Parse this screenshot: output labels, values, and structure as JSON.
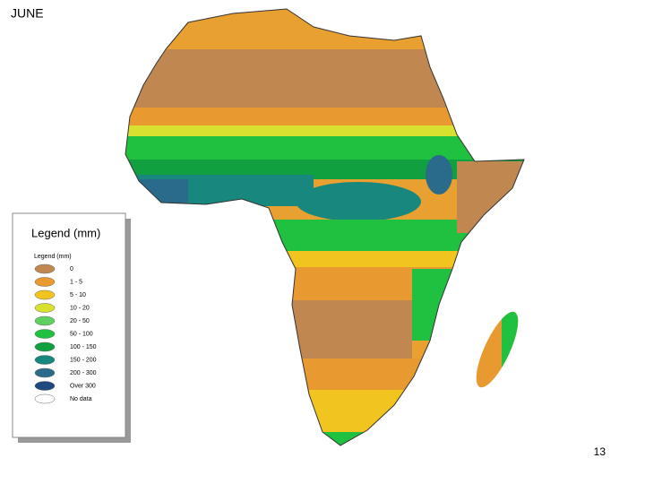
{
  "title": "JUNE",
  "legend": {
    "title": "Legend (mm)",
    "subtitle": "Legend (mm)",
    "items": [
      {
        "label": "0",
        "color": "#c08850"
      },
      {
        "label": "1 - 5",
        "color": "#e89a30"
      },
      {
        "label": "5 - 10",
        "color": "#f2c420"
      },
      {
        "label": "10 - 20",
        "color": "#d8e030"
      },
      {
        "label": "20 - 50",
        "color": "#60d060"
      },
      {
        "label": "50 - 100",
        "color": "#20c040"
      },
      {
        "label": "100 - 150",
        "color": "#10a040"
      },
      {
        "label": "150 - 200",
        "color": "#18887e"
      },
      {
        "label": "200 - 300",
        "color": "#2a6a8a"
      },
      {
        "label": "Over 300",
        "color": "#1f4a80"
      },
      {
        "label": "No data",
        "color": "#ffffff"
      }
    ]
  },
  "page_number": "13"
}
